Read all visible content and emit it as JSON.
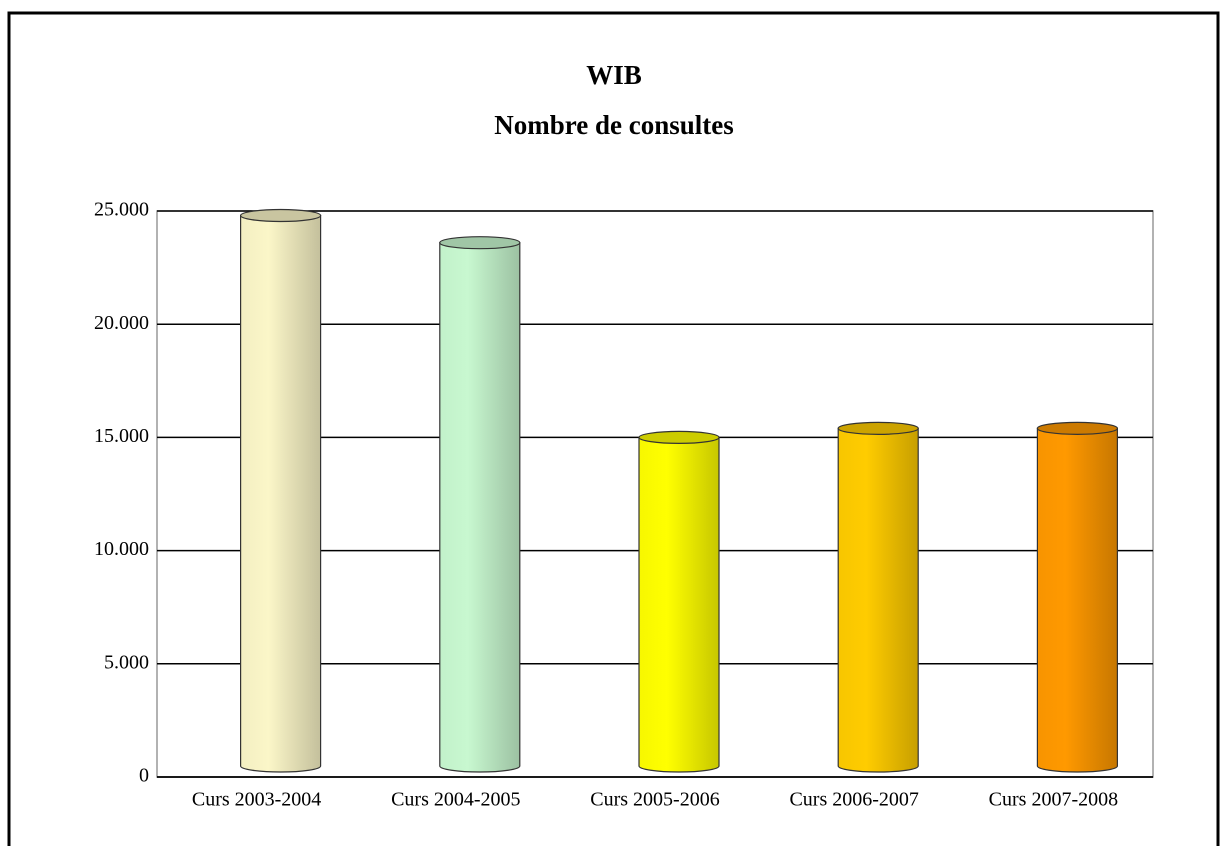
{
  "chart_data": {
    "type": "bar",
    "title": "WIB",
    "subtitle": "Nombre de consultes",
    "categories": [
      "Curs 2003-2004",
      "Curs 2004-2005",
      "Curs 2005-2006",
      "Curs 2006-2007",
      "Curs 2007-2008"
    ],
    "values": [
      24800,
      23600,
      15000,
      15400,
      15400
    ],
    "colors": [
      "#fbf6c8",
      "#c8f8d0",
      "#ffff00",
      "#ffcc00",
      "#ff9900"
    ],
    "ylim": [
      0,
      25000
    ],
    "yticks": [
      0,
      {
        "value": 5000,
        "label": "5.000"
      },
      {
        "value": 10000,
        "label": "10.000"
      },
      {
        "value": 15000,
        "label": "15.000"
      },
      {
        "value": 20000,
        "label": "20.000"
      },
      {
        "value": 25000,
        "label": "25.000"
      }
    ],
    "grid": true
  }
}
